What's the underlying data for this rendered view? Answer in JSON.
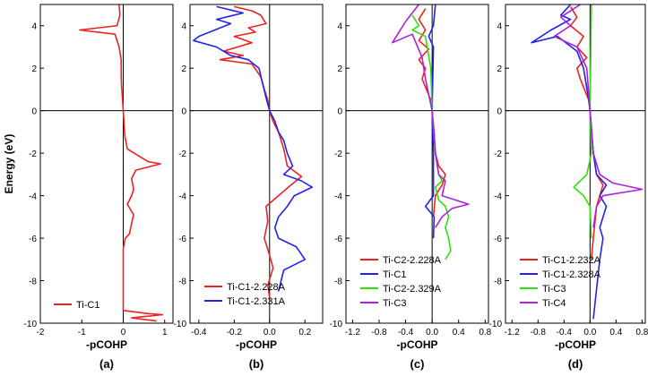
{
  "figure": {
    "ylabel": "Energy (eV)",
    "xlabel": "-pCOHP",
    "colors": {
      "red": "#ee2222",
      "blue": "#2222ee",
      "green": "#33dd11",
      "purple": "#aa22dd",
      "axis": "#000000"
    }
  },
  "chart_data": [
    {
      "type": "line",
      "panel_label": "(a)",
      "xlabel": "-pCOHP",
      "ylabel": "Energy (eV)",
      "xlim": [
        -2,
        1.2
      ],
      "ylim": [
        -10,
        5
      ],
      "xticks": [
        -2,
        -1,
        0,
        1
      ],
      "xtick_labels": [
        "-2",
        "-1",
        "0",
        "1"
      ],
      "yticks": [
        -10,
        -8,
        -6,
        -4,
        -2,
        0,
        2,
        4
      ],
      "ytick_labels": [
        "-10",
        "-8",
        "-6",
        "-4",
        "-2",
        "0",
        "2",
        "4"
      ],
      "series": [
        {
          "name": "Ti-C1",
          "color": "#ee2222",
          "points": [
            [
              -0.1,
              5
            ],
            [
              -0.08,
              4.5
            ],
            [
              -0.15,
              4
            ],
            [
              -1.05,
              3.8
            ],
            [
              -0.2,
              3.6
            ],
            [
              -0.1,
              3
            ],
            [
              -0.05,
              2.4
            ],
            [
              -0.05,
              1.7
            ],
            [
              -0.04,
              1.2
            ],
            [
              -0.02,
              0.6
            ],
            [
              0,
              0
            ],
            [
              0.02,
              -0.6
            ],
            [
              0.04,
              -1.2
            ],
            [
              0.1,
              -1.8
            ],
            [
              0.6,
              -2.4
            ],
            [
              0.9,
              -2.5
            ],
            [
              0.3,
              -2.8
            ],
            [
              0.2,
              -3.2
            ],
            [
              0.25,
              -3.7
            ],
            [
              0.2,
              -4
            ],
            [
              0.1,
              -4.4
            ],
            [
              0.25,
              -4.9
            ],
            [
              0.2,
              -5.3
            ],
            [
              0.15,
              -5.8
            ],
            [
              0.05,
              -6
            ],
            [
              0,
              -6.5
            ],
            [
              0,
              -9.4
            ],
            [
              0.6,
              -9.55
            ],
            [
              0.95,
              -9.6
            ],
            [
              0.2,
              -9.75
            ],
            [
              0.8,
              -9.9
            ]
          ]
        }
      ]
    },
    {
      "type": "line",
      "panel_label": "(b)",
      "xlabel": "-pCOHP",
      "ylabel": "",
      "xlim": [
        -0.45,
        0.3
      ],
      "ylim": [
        -10,
        5
      ],
      "xticks": [
        -0.4,
        -0.2,
        0,
        0.2
      ],
      "xtick_labels": [
        "-0.4",
        "-0.2",
        "0.0",
        "0.2"
      ],
      "yticks": [
        -10,
        -8,
        -6,
        -4,
        -2,
        0,
        2,
        4
      ],
      "ytick_labels": [
        "-10",
        "-8",
        "-6",
        "-4",
        "-2",
        "0",
        "2",
        "4"
      ],
      "series": [
        {
          "name": "Ti-C1-2.228A",
          "color": "#ee2222",
          "points": [
            [
              -0.2,
              4.9
            ],
            [
              -0.1,
              4.7
            ],
            [
              -0.05,
              4.5
            ],
            [
              -0.02,
              4.1
            ],
            [
              -0.12,
              3.9
            ],
            [
              -0.08,
              3.7
            ],
            [
              -0.2,
              3.5
            ],
            [
              -0.1,
              3.2
            ],
            [
              -0.26,
              2.8
            ],
            [
              -0.15,
              2.6
            ],
            [
              -0.28,
              2.4
            ],
            [
              -0.1,
              2.2
            ],
            [
              -0.05,
              1.6
            ],
            [
              -0.03,
              1
            ],
            [
              -0.01,
              0.5
            ],
            [
              0,
              0
            ],
            [
              0.02,
              -0.5
            ],
            [
              0.05,
              -1
            ],
            [
              0.08,
              -1.8
            ],
            [
              0.1,
              -2.6
            ],
            [
              0.18,
              -3.1
            ],
            [
              0.12,
              -3.5
            ],
            [
              0.05,
              -4
            ],
            [
              -0.02,
              -4.5
            ],
            [
              -0.01,
              -5.2
            ],
            [
              -0.03,
              -6
            ],
            [
              0,
              -6.8
            ],
            [
              0.02,
              -7.4
            ],
            [
              -0.01,
              -8.2
            ],
            [
              0,
              -8.8
            ]
          ]
        },
        {
          "name": "Ti-C1-2.331A",
          "color": "#2222ee",
          "points": [
            [
              -0.3,
              4.9
            ],
            [
              -0.15,
              4.6
            ],
            [
              -0.3,
              4.3
            ],
            [
              -0.22,
              4.1
            ],
            [
              -0.4,
              3.5
            ],
            [
              -0.43,
              3.3
            ],
            [
              -0.3,
              3
            ],
            [
              -0.22,
              2.6
            ],
            [
              -0.12,
              2.4
            ],
            [
              -0.06,
              2
            ],
            [
              -0.04,
              1.3
            ],
            [
              -0.02,
              0.6
            ],
            [
              0,
              0
            ],
            [
              0.03,
              -0.5
            ],
            [
              0.05,
              -1
            ],
            [
              0.08,
              -1.4
            ],
            [
              0.1,
              -2
            ],
            [
              0.13,
              -2.6
            ],
            [
              0.08,
              -3
            ],
            [
              0.18,
              -3.3
            ],
            [
              0.24,
              -3.6
            ],
            [
              0.14,
              -4
            ],
            [
              0.1,
              -4.5
            ],
            [
              0.05,
              -5
            ],
            [
              0.03,
              -5.5
            ],
            [
              0.05,
              -6
            ],
            [
              0.15,
              -6.4
            ],
            [
              0.2,
              -7
            ],
            [
              0.08,
              -7.5
            ],
            [
              0.05,
              -8.5
            ]
          ]
        }
      ]
    },
    {
      "type": "line",
      "panel_label": "(c)",
      "xlabel": "-pCOHP",
      "ylabel": "",
      "xlim": [
        -1.3,
        0.85
      ],
      "ylim": [
        -10,
        5
      ],
      "xticks": [
        -1.2,
        -0.8,
        -0.4,
        0,
        0.4,
        0.8
      ],
      "xtick_labels": [
        "-1.2",
        "-0.8",
        "-0.4",
        "0.0",
        "0.4",
        "0.8"
      ],
      "yticks": [
        -10,
        -8,
        -6,
        -4,
        -2,
        0,
        2,
        4
      ],
      "ytick_labels": [
        "-10",
        "-8",
        "-6",
        "-4",
        "-2",
        "0",
        "2",
        "4"
      ],
      "series": [
        {
          "name": "Ti-C2-2.228A",
          "color": "#ee2222",
          "points": [
            [
              -0.1,
              4.8
            ],
            [
              -0.2,
              4.3
            ],
            [
              -0.1,
              3.8
            ],
            [
              -0.2,
              3.3
            ],
            [
              -0.05,
              2.9
            ],
            [
              -0.2,
              2.4
            ],
            [
              -0.1,
              2
            ],
            [
              -0.15,
              1.5
            ],
            [
              -0.02,
              0.5
            ],
            [
              0,
              0
            ],
            [
              0.03,
              -1
            ],
            [
              0.05,
              -2
            ],
            [
              0.1,
              -2.6
            ],
            [
              0.2,
              -3
            ],
            [
              0.15,
              -3.5
            ],
            [
              0.05,
              -4
            ],
            [
              0.02,
              -5
            ]
          ]
        },
        {
          "name": "Ti-C1",
          "color": "#2222ee",
          "points": [
            [
              0.05,
              5
            ],
            [
              0.02,
              4
            ],
            [
              -0.05,
              3.5
            ],
            [
              0.02,
              3
            ],
            [
              0,
              0
            ],
            [
              0.02,
              -2
            ],
            [
              0.02,
              -4
            ],
            [
              -0.1,
              -4.5
            ],
            [
              0.03,
              -5
            ],
            [
              0.02,
              -6
            ]
          ]
        },
        {
          "name": "Ti-C2-2.329A",
          "color": "#33dd11",
          "points": [
            [
              -0.3,
              4.5
            ],
            [
              -0.2,
              4
            ],
            [
              -0.3,
              3.8
            ],
            [
              -0.1,
              3.5
            ],
            [
              -0.02,
              2
            ],
            [
              0,
              0
            ],
            [
              0.05,
              -2
            ],
            [
              0.1,
              -3
            ],
            [
              0.15,
              -3.3
            ],
            [
              0.05,
              -3.6
            ],
            [
              0.1,
              -4.2
            ],
            [
              0.2,
              -4.5
            ],
            [
              0.25,
              -5
            ],
            [
              0.2,
              -5.5
            ],
            [
              0.25,
              -6
            ],
            [
              0.28,
              -6.6
            ],
            [
              0.2,
              -7
            ]
          ]
        },
        {
          "name": "Ti-C3",
          "color": "#aa22dd",
          "points": [
            [
              -0.2,
              5
            ],
            [
              -0.4,
              4.2
            ],
            [
              -0.6,
              3.2
            ],
            [
              -0.3,
              3.6
            ],
            [
              -0.15,
              2.5
            ],
            [
              -0.1,
              1.5
            ],
            [
              0,
              0
            ],
            [
              0.05,
              -2
            ],
            [
              0.1,
              -3
            ],
            [
              0.2,
              -3.3
            ],
            [
              0.15,
              -4
            ],
            [
              0.55,
              -4.4
            ],
            [
              0.3,
              -4.6
            ],
            [
              0.15,
              -5
            ],
            [
              0.05,
              -5.5
            ]
          ]
        }
      ]
    },
    {
      "type": "line",
      "panel_label": "(d)",
      "xlabel": "-pCOHP",
      "ylabel": "",
      "xlim": [
        -1.3,
        0.85
      ],
      "ylim": [
        -10,
        5
      ],
      "xticks": [
        -1.2,
        -0.8,
        -0.4,
        0,
        0.4,
        0.8
      ],
      "xtick_labels": [
        "-1.2",
        "-0.8",
        "-0.4",
        "0.0",
        "0.4",
        "0.8"
      ],
      "yticks": [
        -10,
        -8,
        -6,
        -4,
        -2,
        0,
        2,
        4
      ],
      "ytick_labels": [
        "-10",
        "-8",
        "-6",
        "-4",
        "-2",
        "0",
        "2",
        "4"
      ],
      "series": [
        {
          "name": "Ti-C1-2.232A",
          "color": "#ee2222",
          "points": [
            [
              -0.3,
              4.9
            ],
            [
              -0.2,
              4.4
            ],
            [
              -0.3,
              4
            ],
            [
              -0.1,
              3.5
            ],
            [
              -0.2,
              3
            ],
            [
              -0.05,
              2.5
            ],
            [
              -0.2,
              2
            ],
            [
              -0.15,
              1.5
            ],
            [
              -0.02,
              0.5
            ],
            [
              0,
              0
            ],
            [
              0.05,
              -2
            ],
            [
              0.1,
              -3
            ],
            [
              0.2,
              -3.5
            ],
            [
              0.1,
              -4.5
            ],
            [
              0.05,
              -6
            ],
            [
              0.02,
              -7
            ]
          ]
        },
        {
          "name": "Ti-C1-2.328A",
          "color": "#2222ee",
          "points": [
            [
              -0.3,
              5
            ],
            [
              -0.45,
              4.5
            ],
            [
              -0.3,
              4.3
            ],
            [
              -0.6,
              3.8
            ],
            [
              -0.9,
              3.2
            ],
            [
              -0.5,
              3.5
            ],
            [
              -0.2,
              2.8
            ],
            [
              -0.1,
              2
            ],
            [
              -0.02,
              0.5
            ],
            [
              0,
              0
            ],
            [
              0.05,
              -2
            ],
            [
              0.1,
              -3
            ],
            [
              0.25,
              -3.5
            ],
            [
              0.15,
              -4
            ],
            [
              0.25,
              -4.5
            ],
            [
              0.15,
              -5.5
            ],
            [
              0.2,
              -6
            ],
            [
              0.15,
              -7
            ],
            [
              0.05,
              -9.8
            ]
          ]
        },
        {
          "name": "Ti-C3",
          "color": "#33dd11",
          "points": [
            [
              0.02,
              5
            ],
            [
              0,
              0
            ],
            [
              0.02,
              -2
            ],
            [
              -0.05,
              -3
            ],
            [
              -0.25,
              -3.6
            ],
            [
              -0.1,
              -4
            ],
            [
              0,
              -4.5
            ],
            [
              0.02,
              -6
            ]
          ]
        },
        {
          "name": "Ti-C4",
          "color": "#aa22dd",
          "points": [
            [
              -0.15,
              5
            ],
            [
              -0.45,
              4.4
            ],
            [
              -0.3,
              4
            ],
            [
              -0.55,
              3.5
            ],
            [
              -0.2,
              3
            ],
            [
              -0.05,
              2
            ],
            [
              0,
              0
            ],
            [
              0.05,
              -2
            ],
            [
              0.15,
              -3
            ],
            [
              0.35,
              -3.4
            ],
            [
              0.8,
              -3.7
            ],
            [
              0.2,
              -4
            ],
            [
              0.1,
              -4.5
            ],
            [
              0.05,
              -5.5
            ]
          ]
        }
      ]
    }
  ]
}
